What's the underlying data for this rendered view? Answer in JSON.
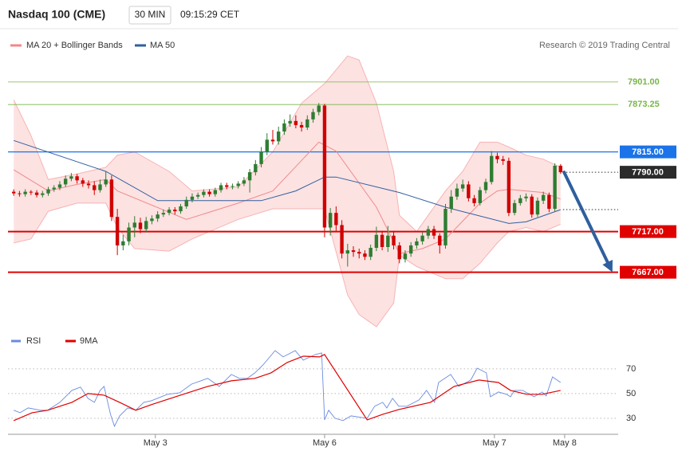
{
  "chart_data": [
    {
      "type": "candlestick",
      "title": "Nasdaq 100 (CME)",
      "interval": "30 MIN",
      "time": "09:15:29 CET",
      "source": "Research © 2019 Trading Central",
      "xlim": [
        -1,
        105
      ],
      "ylim": [
        7600,
        7943
      ],
      "up_color": "#2e7d32",
      "down_color": "#d00000",
      "open": [
        7766,
        7764,
        7763,
        7766,
        7765,
        7762,
        7764,
        7769,
        7771,
        7775,
        7782,
        7785,
        7780,
        7776,
        7774,
        7768,
        7775,
        7781,
        7735,
        7700,
        7705,
        7722,
        7728,
        7720,
        7730,
        7733,
        7738,
        7740,
        7744,
        7742,
        7748,
        7756,
        7760,
        7762,
        7766,
        7763,
        7768,
        7774,
        7772,
        7773,
        7776,
        7780,
        7790,
        7800,
        7815,
        7830,
        7828,
        7840,
        7850,
        7853,
        7848,
        7845,
        7855,
        7864,
        7872,
        7722,
        7740,
        7725,
        7690,
        7694,
        7692,
        7690,
        7686,
        7697,
        7713,
        7698,
        7712,
        7700,
        7683,
        7690,
        7700,
        7705,
        7712,
        7720,
        7712,
        7700,
        7745,
        7760,
        7770,
        7775,
        7758,
        7752,
        7768,
        7778,
        7810,
        7806,
        7804,
        7740,
        7752,
        7758,
        7760,
        7738,
        7755,
        7762,
        7745,
        7798
      ],
      "high": [
        7769,
        7767,
        7769,
        7768,
        7768,
        7767,
        7772,
        7774,
        7779,
        7786,
        7789,
        7788,
        7783,
        7780,
        7779,
        7781,
        7791,
        7786,
        7745,
        7713,
        7728,
        7736,
        7734,
        7735,
        7737,
        7742,
        7744,
        7747,
        7747,
        7751,
        7760,
        7764,
        7765,
        7769,
        7769,
        7771,
        7777,
        7777,
        7776,
        7779,
        7784,
        7794,
        7805,
        7821,
        7838,
        7842,
        7846,
        7855,
        7861,
        7860,
        7852,
        7860,
        7868,
        7875,
        7874,
        7746,
        7748,
        7731,
        7702,
        7699,
        7696,
        7694,
        7701,
        7723,
        7718,
        7724,
        7718,
        7704,
        7694,
        7704,
        7709,
        7716,
        7724,
        7724,
        7715,
        7751,
        7768,
        7776,
        7781,
        7779,
        7762,
        7772,
        7782,
        7816,
        7814,
        7810,
        7808,
        7756,
        7762,
        7764,
        7763,
        7759,
        7766,
        7765,
        7801,
        7800
      ],
      "low": [
        7761,
        7760,
        7760,
        7762,
        7759,
        7759,
        7761,
        7766,
        7768,
        7772,
        7779,
        7776,
        7772,
        7770,
        7762,
        7765,
        7772,
        7730,
        7688,
        7694,
        7700,
        7710,
        7715,
        7716,
        7726,
        7729,
        7735,
        7737,
        7738,
        7739,
        7745,
        7753,
        7757,
        7759,
        7760,
        7760,
        7765,
        7769,
        7769,
        7770,
        7773,
        7765,
        7786,
        7796,
        7811,
        7824,
        7824,
        7836,
        7846,
        7844,
        7840,
        7842,
        7851,
        7860,
        7710,
        7712,
        7718,
        7684,
        7674,
        7686,
        7684,
        7682,
        7682,
        7693,
        7694,
        7692,
        7695,
        7678,
        7679,
        7686,
        7696,
        7701,
        7708,
        7708,
        7690,
        7696,
        7740,
        7756,
        7766,
        7754,
        7748,
        7749,
        7764,
        7775,
        7801,
        7799,
        7736,
        7737,
        7749,
        7754,
        7734,
        7735,
        7751,
        7741,
        7742,
        7788
      ],
      "close": [
        7764,
        7763,
        7766,
        7765,
        7762,
        7764,
        7769,
        7771,
        7775,
        7782,
        7785,
        7780,
        7776,
        7774,
        7768,
        7775,
        7781,
        7735,
        7700,
        7705,
        7722,
        7728,
        7720,
        7730,
        7733,
        7738,
        7740,
        7744,
        7742,
        7748,
        7756,
        7760,
        7762,
        7766,
        7763,
        7768,
        7774,
        7772,
        7773,
        7776,
        7780,
        7790,
        7800,
        7815,
        7830,
        7828,
        7840,
        7850,
        7853,
        7848,
        7845,
        7855,
        7864,
        7872,
        7722,
        7740,
        7725,
        7690,
        7694,
        7692,
        7690,
        7686,
        7697,
        7713,
        7698,
        7712,
        7700,
        7683,
        7690,
        7700,
        7705,
        7712,
        7720,
        7712,
        7700,
        7745,
        7760,
        7770,
        7775,
        7758,
        7752,
        7768,
        7778,
        7810,
        7806,
        7804,
        7740,
        7752,
        7758,
        7760,
        7738,
        7755,
        7762,
        7745,
        7798,
        7790
      ],
      "bands": {
        "color": "#fde2e2",
        "line_color": "#f7b3b3",
        "x": [
          0,
          3,
          6,
          11,
          16,
          18,
          21,
          27,
          31,
          39,
          45,
          50,
          54,
          58,
          60,
          63,
          66,
          67,
          70,
          75,
          78,
          81,
          84,
          86,
          89,
          92,
          95
        ],
        "upper": [
          7879,
          7835,
          7781,
          7788,
          7796,
          7811,
          7815,
          7791,
          7767,
          7772,
          7815,
          7875,
          7899,
          7933,
          7928,
          7875,
          7791,
          7737,
          7717,
          7767,
          7791,
          7827,
          7827,
          7821,
          7811,
          7806,
          7796
        ],
        "lower": [
          7703,
          7708,
          7742,
          7752,
          7752,
          7722,
          7696,
          7693,
          7708,
          7732,
          7745,
          7745,
          7745,
          7639,
          7615,
          7600,
          7629,
          7688,
          7674,
          7659,
          7659,
          7678,
          7703,
          7717,
          7722,
          7717,
          7726
        ]
      },
      "series": [
        {
          "name": "MA 20 + Bollinger Bands",
          "color": "#f08a8a",
          "x": [
            0,
            6,
            11,
            16,
            18,
            30,
            39,
            45,
            53,
            56,
            63,
            67,
            71,
            75,
            81,
            84,
            86,
            92,
            95
          ],
          "values": [
            7793,
            7767,
            7775,
            7781,
            7767,
            7732,
            7752,
            7767,
            7827,
            7816,
            7747,
            7690,
            7696,
            7708,
            7752,
            7767,
            7769,
            7765,
            7757
          ]
        },
        {
          "name": "MA 50",
          "color": "#2f5f9e",
          "x": [
            0,
            16,
            25,
            43,
            49,
            54,
            56,
            67,
            75,
            86,
            89,
            95
          ],
          "values": [
            7829,
            7791,
            7755,
            7755,
            7767,
            7784,
            7784,
            7765,
            7747,
            7727,
            7729,
            7744
          ]
        }
      ],
      "levels": [
        {
          "value": 7901,
          "label": "7901.00",
          "color": "#7ab648"
        },
        {
          "value": 7873.25,
          "label": "7873.25",
          "color": "#7ab648"
        },
        {
          "value": 7815,
          "label": "7815.00",
          "color": "#1a73e8",
          "box": true
        },
        {
          "value": 7790,
          "label": "7790.00",
          "color": "#2b2b2b",
          "box": true,
          "style": "dotted"
        },
        {
          "value": 7744,
          "color": "#2b2b2b",
          "style": "dotted"
        },
        {
          "value": 7717,
          "label": "7717.00",
          "color": "#e00000",
          "box": true
        },
        {
          "value": 7667,
          "label": "7667.00",
          "color": "#e00000",
          "box": true
        }
      ],
      "forecast": {
        "color": "#2f5f9e",
        "x": [
          95.6,
          104
        ],
        "values": [
          7790,
          7667
        ]
      }
    },
    {
      "type": "line",
      "xlim": [
        -1,
        105
      ],
      "ylim": [
        17,
        99
      ],
      "yticks": [
        30,
        50,
        70
      ],
      "grid": true,
      "xticks": [
        {
          "value": 24.6,
          "label": "May 3"
        },
        {
          "value": 54,
          "label": "May 6"
        },
        {
          "value": 83.5,
          "label": "May 7"
        },
        {
          "value": 95.7,
          "label": "May 8"
        }
      ],
      "series": [
        {
          "name": "RSI",
          "color": "#6a8be0",
          "x": [
            0,
            1.1,
            2.5,
            4.6,
            5.9,
            8,
            10.1,
            11.6,
            12.9,
            14,
            15,
            15.7,
            16.8,
            17.5,
            18.4,
            19.8,
            21.2,
            22.6,
            23.9,
            26.7,
            28.8,
            30.9,
            33.7,
            35.7,
            37.8,
            39.2,
            40.6,
            41.9,
            43.3,
            45.4,
            46.8,
            48.9,
            50.3,
            52.4,
            53.5,
            54,
            54.7,
            55.8,
            57.2,
            58.6,
            61.4,
            62.7,
            64.1,
            64.8,
            65.8,
            66.9,
            68.3,
            70.4,
            71.7,
            73.1,
            73.8,
            75.9,
            77.3,
            79.4,
            80.5,
            82.1,
            82.8,
            84.2,
            85.6,
            86.3,
            87,
            88.4,
            90.4,
            91.8,
            92.5,
            93.6,
            95
          ],
          "values": [
            36.5,
            34.5,
            38.4,
            36.5,
            36.5,
            42.9,
            52.6,
            55.2,
            46.1,
            42.9,
            52.6,
            55.8,
            33.2,
            23.5,
            31.9,
            38.4,
            36.5,
            42.9,
            44.2,
            49.4,
            50.6,
            57.7,
            62.3,
            55.8,
            65.5,
            62.3,
            62.3,
            66.8,
            73.2,
            84.8,
            79.7,
            84.8,
            77.1,
            81.6,
            82.9,
            28.7,
            36.5,
            30,
            28.1,
            31.9,
            30,
            39.7,
            42.9,
            38.4,
            46.1,
            39.7,
            39.7,
            44.8,
            52.6,
            42.9,
            59,
            65.5,
            55.8,
            61,
            70.6,
            66.8,
            47.4,
            51.3,
            49.4,
            47.4,
            52.6,
            52.6,
            47.4,
            51.3,
            48.1,
            63.5,
            59
          ]
        },
        {
          "name": "9MA",
          "color": "#e00000",
          "x": [
            0,
            3.2,
            5.9,
            10.1,
            12.9,
            15.7,
            18.4,
            21.2,
            23.9,
            28.1,
            33.7,
            37.8,
            41.9,
            44.7,
            47.5,
            50.3,
            53.1,
            54,
            61.4,
            64.1,
            66.9,
            72.4,
            76.5,
            80.8,
            84.2,
            86.3,
            89.1,
            91.8,
            95
          ],
          "values": [
            28.1,
            34.5,
            36.5,
            42.9,
            50,
            48.7,
            42.9,
            36.5,
            41,
            47.4,
            55.8,
            60.3,
            62.3,
            66.8,
            75.2,
            80.3,
            79.7,
            81.6,
            28.7,
            33.2,
            37.1,
            42.9,
            55.8,
            61,
            59,
            52.6,
            49.4,
            49.4,
            52.6
          ]
        }
      ]
    }
  ]
}
